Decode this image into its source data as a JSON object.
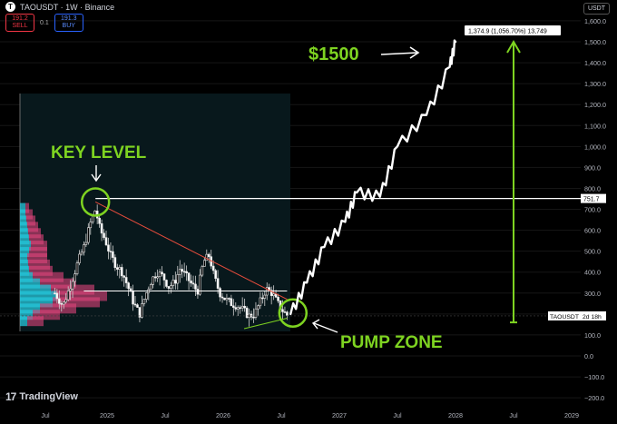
{
  "header": {
    "title": "TAOUSDT · 1W · Binance",
    "sell_price": "191.2",
    "sell_label": "SELL",
    "spread": "0.1",
    "buy_price": "191.3",
    "buy_label": "BUY",
    "currency": "USDT"
  },
  "branding": {
    "name": "TradingView",
    "mark": "17"
  },
  "colors": {
    "up": "#d9d9d9",
    "down": "#ffffff",
    "annotation": "#7ed321",
    "level": "#ffffff",
    "trendline": "#e74c3c",
    "vp_blue": "#26c6da",
    "vp_pink": "#e0457b"
  },
  "chart_data": {
    "type": "candlestick",
    "timeframe": "1W",
    "symbol": "TAOUSDT",
    "x_ticks": [
      "Jul",
      "2025",
      "Jul",
      "2026",
      "Jul",
      "2027",
      "Jul",
      "2028",
      "Jul",
      "2029"
    ],
    "y_ticks": [
      "1,600.0",
      "1,500.0",
      "1,400.0",
      "1,300.0",
      "1,200.0",
      "1,100.0",
      "1,000.0",
      "900.0",
      "800.0",
      "700.0",
      "600.0",
      "500.0",
      "400.0",
      "300.0",
      "200.0",
      "100.0",
      "0.0",
      "−100.0",
      "−200.0"
    ],
    "y_values": [
      1600,
      1500,
      1400,
      1300,
      1200,
      1100,
      1000,
      900,
      800,
      700,
      600,
      500,
      400,
      300,
      200,
      100,
      0,
      -100,
      -200
    ],
    "ylim": [
      -230,
      1650
    ],
    "key_level_price": 751.7,
    "key_level_label": "751.7",
    "support_price": 310,
    "last_price": 191,
    "last_price_label": "TAOUSDT",
    "countdown": "2d 18h",
    "measure_label": "1,374.9 (1,056.70%) 13,749",
    "annotations": {
      "target": "$1500",
      "key_level": "KEY LEVEL",
      "pump_zone": "PUMP ZONE"
    },
    "candles_hint": "weekly OHLC from mid-2024 to Jul 2026; peak near 730, range 150-500",
    "projection_path": [
      [
        2026.58,
        200
      ],
      [
        2026.72,
        350
      ],
      [
        2026.87,
        520
      ],
      [
        2027.05,
        640
      ],
      [
        2027.15,
        780
      ],
      [
        2027.35,
        760
      ],
      [
        2027.5,
        1000
      ],
      [
        2027.75,
        1150
      ],
      [
        2027.95,
        1380
      ],
      [
        2028.0,
        1500
      ]
    ]
  }
}
